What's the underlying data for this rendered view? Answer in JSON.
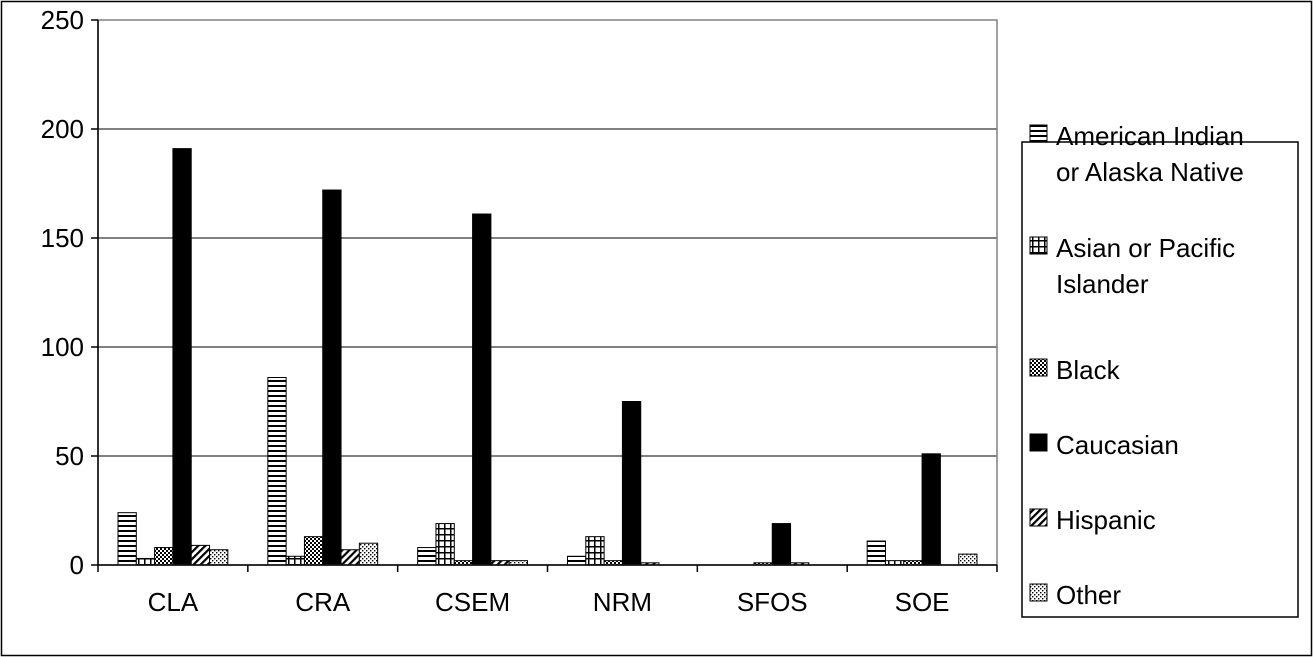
{
  "chart_data": {
    "type": "bar",
    "title": "",
    "xlabel": "",
    "ylabel": "",
    "ylim": [
      0,
      250
    ],
    "yticks": [
      0,
      50,
      100,
      150,
      200,
      250
    ],
    "grid": "horizontal",
    "legend_position": "right",
    "categories": [
      "CLA",
      "CRA",
      "CSEM",
      "NRM",
      "SFOS",
      "SOE"
    ],
    "series": [
      {
        "name": "American Indian or Alaska Native",
        "name_lines": [
          "American Indian",
          "or Alaska Native"
        ],
        "pattern": "hstripes",
        "values": [
          24,
          86,
          8,
          4,
          0,
          11
        ]
      },
      {
        "name": "Asian or Pacific Islander",
        "name_lines": [
          "Asian or Pacific",
          "Islander"
        ],
        "pattern": "grid",
        "values": [
          3,
          4,
          19,
          13,
          0,
          2
        ]
      },
      {
        "name": "Black",
        "name_lines": [
          "Black"
        ],
        "pattern": "checker",
        "values": [
          8,
          13,
          2,
          2,
          1,
          2
        ]
      },
      {
        "name": "Caucasian",
        "name_lines": [
          "Caucasian"
        ],
        "pattern": "solid",
        "values": [
          191,
          172,
          161,
          75,
          19,
          51
        ]
      },
      {
        "name": "Hispanic",
        "name_lines": [
          "Hispanic"
        ],
        "pattern": "diagonal",
        "values": [
          9,
          7,
          2,
          1,
          1,
          0
        ]
      },
      {
        "name": "Other",
        "name_lines": [
          "Other"
        ],
        "pattern": "dots",
        "values": [
          7,
          10,
          2,
          0,
          0,
          5
        ]
      }
    ],
    "colors": {
      "bar_fill": "#000000",
      "bar_stroke": "#000000",
      "background": "#ffffff",
      "gridline": "#000000",
      "axis": "#808080"
    }
  }
}
